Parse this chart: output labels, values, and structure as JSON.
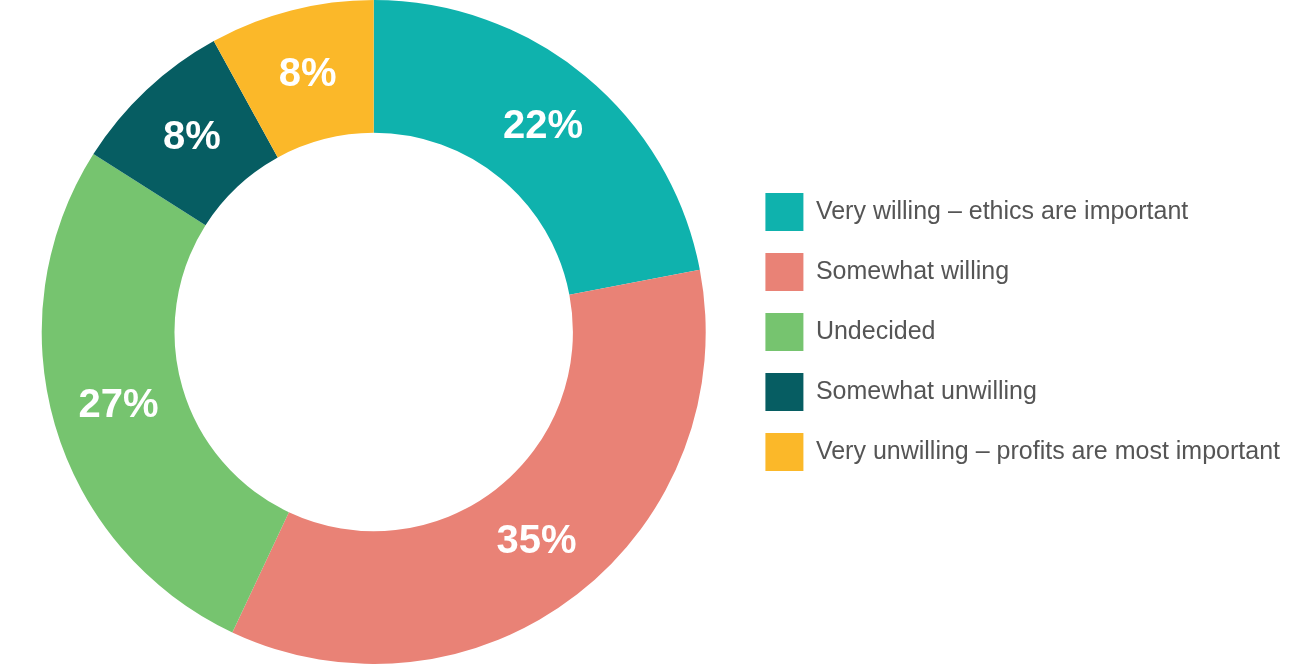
{
  "chart_data": {
    "type": "donut",
    "categories": [
      "Very willing – ethics are important",
      "Somewhat willing",
      "Undecided",
      "Somewhat unwilling",
      "Very unwilling – profits are most important"
    ],
    "values": [
      22,
      35,
      27,
      8,
      8
    ],
    "value_labels": [
      "22%",
      "35%",
      "27%",
      "8%",
      "8%"
    ],
    "colors": [
      "#0fb2ad",
      "#e98276",
      "#76c46f",
      "#065d62",
      "#fbb829"
    ],
    "legend": "right"
  }
}
